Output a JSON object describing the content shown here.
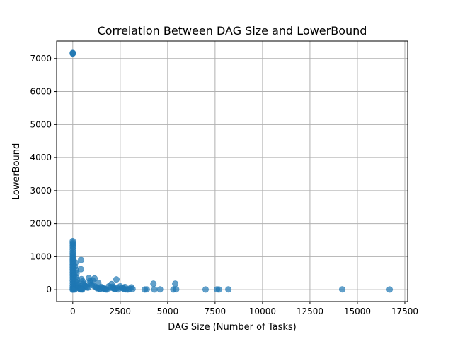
{
  "chart_data": {
    "type": "scatter",
    "title": "Correlation Between DAG Size and LowerBound",
    "xlabel": "DAG Size (Number of Tasks)",
    "ylabel": "LowerBound",
    "xlim": [
      -850,
      17650
    ],
    "ylim": [
      -360,
      7530
    ],
    "xticks": [
      0,
      2500,
      5000,
      7500,
      10000,
      12500,
      15000,
      17500
    ],
    "yticks": [
      0,
      1000,
      2000,
      3000,
      4000,
      5000,
      6000,
      7000
    ],
    "grid": true,
    "marker_color": "#1f77b4",
    "marker_opacity": 0.7,
    "points": [
      [
        0,
        7150
      ],
      [
        0,
        7170
      ],
      [
        5,
        7160
      ],
      [
        0,
        1470
      ],
      [
        0,
        1420
      ],
      [
        5,
        1380
      ],
      [
        0,
        1330
      ],
      [
        3,
        1280
      ],
      [
        0,
        1220
      ],
      [
        2,
        1150
      ],
      [
        0,
        1100
      ],
      [
        4,
        1050
      ],
      [
        0,
        1000
      ],
      [
        5,
        960
      ],
      [
        0,
        920
      ],
      [
        2,
        880
      ],
      [
        0,
        840
      ],
      [
        6,
        800
      ],
      [
        0,
        760
      ],
      [
        3,
        720
      ],
      [
        0,
        680
      ],
      [
        8,
        640
      ],
      [
        0,
        600
      ],
      [
        10,
        560
      ],
      [
        0,
        520
      ],
      [
        12,
        480
      ],
      [
        0,
        440
      ],
      [
        15,
        400
      ],
      [
        0,
        360
      ],
      [
        20,
        320
      ],
      [
        0,
        280
      ],
      [
        25,
        240
      ],
      [
        0,
        200
      ],
      [
        30,
        160
      ],
      [
        0,
        120
      ],
      [
        40,
        90
      ],
      [
        0,
        60
      ],
      [
        60,
        40
      ],
      [
        0,
        20
      ],
      [
        80,
        10
      ],
      [
        0,
        0
      ],
      [
        100,
        5
      ],
      [
        150,
        820
      ],
      [
        120,
        700
      ],
      [
        180,
        600
      ],
      [
        200,
        500
      ],
      [
        90,
        450
      ],
      [
        160,
        380
      ],
      [
        220,
        300
      ],
      [
        140,
        250
      ],
      [
        240,
        200
      ],
      [
        260,
        150
      ],
      [
        300,
        120
      ],
      [
        280,
        80
      ],
      [
        320,
        60
      ],
      [
        350,
        40
      ],
      [
        380,
        20
      ],
      [
        400,
        10
      ],
      [
        420,
        50
      ],
      [
        450,
        30
      ],
      [
        480,
        15
      ],
      [
        500,
        5
      ],
      [
        440,
        900
      ],
      [
        430,
        620
      ],
      [
        460,
        320
      ],
      [
        520,
        250
      ],
      [
        560,
        180
      ],
      [
        600,
        150
      ],
      [
        650,
        120
      ],
      [
        700,
        100
      ],
      [
        750,
        80
      ],
      [
        800,
        60
      ],
      [
        850,
        350
      ],
      [
        900,
        250
      ],
      [
        950,
        200
      ],
      [
        1000,
        150
      ],
      [
        1050,
        280
      ],
      [
        1100,
        120
      ],
      [
        1150,
        340
      ],
      [
        1200,
        90
      ],
      [
        1250,
        60
      ],
      [
        1300,
        40
      ],
      [
        1350,
        200
      ],
      [
        1400,
        30
      ],
      [
        1450,
        20
      ],
      [
        1500,
        80
      ],
      [
        1550,
        50
      ],
      [
        1600,
        40
      ],
      [
        1650,
        30
      ],
      [
        1700,
        20
      ],
      [
        1750,
        10
      ],
      [
        1800,
        5
      ],
      [
        1900,
        100
      ],
      [
        2000,
        60
      ],
      [
        2050,
        170
      ],
      [
        2100,
        90
      ],
      [
        2150,
        40
      ],
      [
        2200,
        20
      ],
      [
        2250,
        30
      ],
      [
        2300,
        310
      ],
      [
        2350,
        50
      ],
      [
        2400,
        10
      ],
      [
        2500,
        100
      ],
      [
        2600,
        60
      ],
      [
        2650,
        40
      ],
      [
        2700,
        20
      ],
      [
        2750,
        80
      ],
      [
        2800,
        10
      ],
      [
        2900,
        5
      ],
      [
        3000,
        30
      ],
      [
        3100,
        70
      ],
      [
        3150,
        20
      ],
      [
        3800,
        5
      ],
      [
        3900,
        10
      ],
      [
        4250,
        180
      ],
      [
        4300,
        5
      ],
      [
        4600,
        10
      ],
      [
        5300,
        5
      ],
      [
        5400,
        180
      ],
      [
        5450,
        10
      ],
      [
        7000,
        5
      ],
      [
        7600,
        10
      ],
      [
        7700,
        5
      ],
      [
        8200,
        10
      ],
      [
        14200,
        10
      ],
      [
        16700,
        5
      ]
    ]
  }
}
